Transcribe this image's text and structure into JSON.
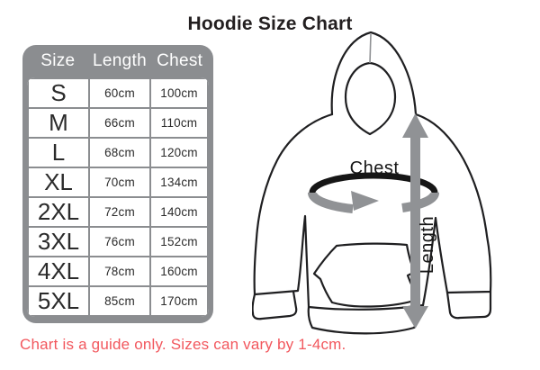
{
  "title": "Hoodie Size Chart",
  "table": {
    "headers": [
      "Size",
      "Length",
      "Chest"
    ],
    "rows": [
      [
        "S",
        "60cm",
        "100cm"
      ],
      [
        "M",
        "66cm",
        "110cm"
      ],
      [
        "L",
        "68cm",
        "120cm"
      ],
      [
        "XL",
        "70cm",
        "134cm"
      ],
      [
        "2XL",
        "72cm",
        "140cm"
      ],
      [
        "3XL",
        "76cm",
        "152cm"
      ],
      [
        "4XL",
        "78cm",
        "160cm"
      ],
      [
        "5XL",
        "85cm",
        "170cm"
      ]
    ]
  },
  "diagram": {
    "chest_label": "Chest",
    "length_label": "Length"
  },
  "footnote": "Chart is a guide only. Sizes can vary by 1-4cm.",
  "colors": {
    "table_gray": "#8b8d90",
    "arrow_gray": "#909295",
    "note_red": "#f2575d",
    "ink": "#1f1f21"
  }
}
